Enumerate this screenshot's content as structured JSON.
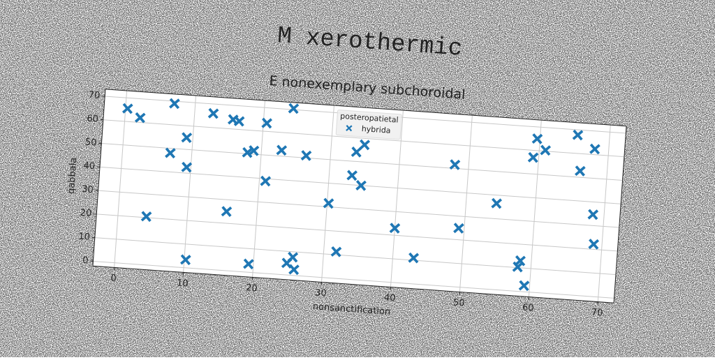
{
  "chart_data": {
    "type": "scatter",
    "title": "M xerothermic",
    "subtitle": "E nonexemplary subchoroidal",
    "x_label": "nonsanctification",
    "y_label": "qabbala",
    "legend_title": "posteropatietal",
    "legend_position": "upper center",
    "grid": true,
    "xlim": [
      -3.1,
      72.3
    ],
    "ylim": [
      -2,
      73
    ],
    "xticks": [
      0,
      10,
      20,
      30,
      40,
      50,
      60,
      70
    ],
    "yticks": [
      0,
      10,
      20,
      30,
      40,
      50,
      60,
      70
    ],
    "series": [
      {
        "name": "hybrida",
        "color": "#1f77b4",
        "marker": "X",
        "x": [
          0.3,
          2.2,
          4.1,
          6.9,
          7.0,
          9.1,
          9.4,
          10.2,
          12.7,
          15.6,
          15.6,
          16.5,
          18.0,
          18.9,
          19.3,
          20.9,
          20.5,
          22.9,
          24.2,
          24.8,
          25.6,
          25.9,
          26.5,
          30.2,
          31.8,
          33.3,
          33.7,
          34.7,
          34.8,
          40.0,
          43.0,
          48.0,
          49.2,
          54.4,
          58.1,
          58.4,
          59.2,
          59.2,
          59.6,
          60.9,
          65.4,
          66.1,
          68.0,
          68.4,
          68.8
        ],
        "values": [
          65.5,
          62,
          20.5,
          48,
          69,
          55,
          42.5,
          3.4,
          66,
          25,
          64,
          63.5,
          50.5,
          51.5,
          3.5,
          39,
          63.5,
          52.5,
          70.5,
          5,
          7.7,
          2.5,
          51,
          31.5,
          11.3,
          44,
          54,
          40,
          57.3,
          23,
          11,
          51.6,
          24.9,
          36.5,
          10.3,
          13,
          2.6,
          57,
          65,
          60.4,
          67.8,
          52.7,
          62.4,
          34.7,
          22.2
        ]
      }
    ]
  }
}
